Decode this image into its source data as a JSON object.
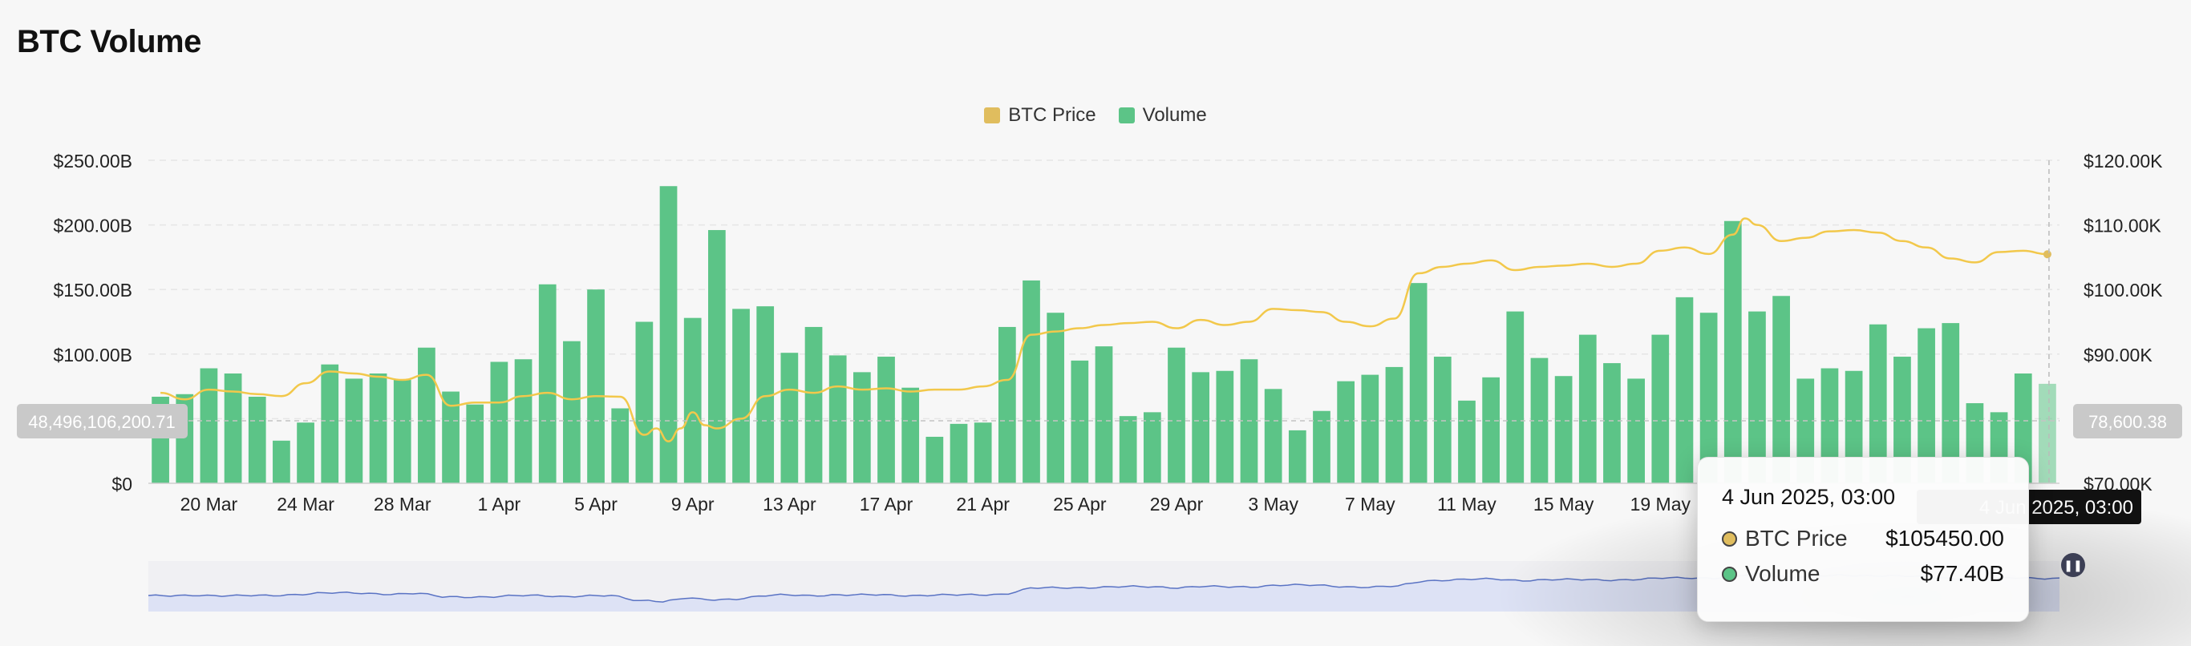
{
  "page": {
    "title": "BTC Volume"
  },
  "colors": {
    "volume": "#5cc487",
    "price": "#f2c84b",
    "navigator_fill": "#dde2f5",
    "navigator_line": "#5a73c4"
  },
  "legend": [
    {
      "label": "BTC Price",
      "color": "#e0bd5e"
    },
    {
      "label": "Volume",
      "color": "#5cc487"
    }
  ],
  "crosshair": {
    "left_value": "48,496,106,200.71",
    "right_value": "78,600.38",
    "x_label": "4 Jun 2025, 03:00"
  },
  "tooltip": {
    "title": "4 Jun 2025, 03:00",
    "rows": [
      {
        "label": "BTC Price",
        "value": "$105450.00",
        "color": "#e0bd5e"
      },
      {
        "label": "Volume",
        "value": "$77.40B",
        "color": "#5cc487"
      }
    ]
  },
  "chart_data": {
    "type": "bar",
    "title": "BTC Volume",
    "x_ticks": [
      "20 Mar",
      "24 Mar",
      "28 Mar",
      "1 Apr",
      "5 Apr",
      "9 Apr",
      "13 Apr",
      "17 Apr",
      "21 Apr",
      "25 Apr",
      "29 Apr",
      "3 May",
      "7 May",
      "11 May",
      "15 May",
      "19 May"
    ],
    "y_left": {
      "ticks": [
        "$0",
        "$50.00B",
        "$100.00B",
        "$150.00B",
        "$200.00B",
        "$250.00B"
      ],
      "range": [
        0,
        250
      ]
    },
    "y_right": {
      "ticks": [
        "$70.00K",
        "$80.00K",
        "$90.00K",
        "$100.00K",
        "$110.00K",
        "$120.00K"
      ],
      "range": [
        70,
        120
      ]
    },
    "grid": true,
    "legend_position": "top-center",
    "series": [
      {
        "name": "Volume",
        "type": "bar",
        "axis": "left",
        "unit": "B",
        "values": [
          67,
          69,
          89,
          85,
          67,
          33,
          47,
          92,
          81,
          85,
          80,
          105,
          71,
          61,
          94,
          96,
          154,
          110,
          150,
          58,
          125,
          230,
          128,
          196,
          135,
          137,
          101,
          121,
          99,
          86,
          98,
          74,
          36,
          46,
          47,
          121,
          157,
          132,
          95,
          106,
          52,
          55,
          105,
          86,
          87,
          96,
          73,
          41,
          56,
          79,
          84,
          90,
          155,
          98,
          64,
          82,
          133,
          97,
          83,
          115,
          93,
          81,
          115,
          144,
          132,
          203,
          133,
          145,
          81,
          89,
          87,
          123,
          98,
          120,
          124,
          62,
          55,
          85,
          77
        ]
      },
      {
        "name": "BTC Price",
        "type": "line",
        "axis": "right",
        "unit": "K",
        "points": [
          [
            0,
            84.0
          ],
          [
            1,
            83.0
          ],
          [
            2,
            84.5
          ],
          [
            3,
            84.2
          ],
          [
            4,
            83.8
          ],
          [
            5,
            83.5
          ],
          [
            6,
            85.5
          ],
          [
            7,
            87.3
          ],
          [
            8,
            87.0
          ],
          [
            9,
            86.5
          ],
          [
            10,
            86.0
          ],
          [
            11,
            86.8
          ],
          [
            12,
            82.0
          ],
          [
            13,
            82.5
          ],
          [
            14,
            82.5
          ],
          [
            15,
            83.5
          ],
          [
            16,
            84.0
          ],
          [
            17,
            83.0
          ],
          [
            18,
            83.5
          ],
          [
            19,
            83.4
          ],
          [
            20,
            77.5
          ],
          [
            20.5,
            78.5
          ],
          [
            21,
            76.5
          ],
          [
            21.5,
            78.5
          ],
          [
            22,
            81.0
          ],
          [
            22.5,
            79.0
          ],
          [
            23,
            78.5
          ],
          [
            24,
            80.0
          ],
          [
            25,
            83.5
          ],
          [
            26,
            84.5
          ],
          [
            27,
            84.0
          ],
          [
            28,
            85.0
          ],
          [
            29,
            84.5
          ],
          [
            30,
            84.7
          ],
          [
            31,
            84.2
          ],
          [
            32,
            84.5
          ],
          [
            33,
            84.5
          ],
          [
            34,
            85.0
          ],
          [
            35,
            86.0
          ],
          [
            36,
            93.0
          ],
          [
            37,
            93.5
          ],
          [
            38,
            94.0
          ],
          [
            39,
            94.5
          ],
          [
            40,
            94.8
          ],
          [
            41,
            95.0
          ],
          [
            42,
            94.0
          ],
          [
            43,
            95.3
          ],
          [
            44,
            94.5
          ],
          [
            45,
            95.0
          ],
          [
            46,
            97.0
          ],
          [
            47,
            96.8
          ],
          [
            48,
            96.5
          ],
          [
            49,
            95.0
          ],
          [
            50,
            94.3
          ],
          [
            51,
            95.5
          ],
          [
            52,
            102.5
          ],
          [
            53,
            103.5
          ],
          [
            54,
            104.0
          ],
          [
            55,
            104.5
          ],
          [
            56,
            103.0
          ],
          [
            57,
            103.5
          ],
          [
            58,
            103.7
          ],
          [
            59,
            104.0
          ],
          [
            60,
            103.5
          ],
          [
            61,
            104.0
          ],
          [
            62,
            106.0
          ],
          [
            63,
            106.5
          ],
          [
            64,
            105.5
          ],
          [
            65,
            108.5
          ],
          [
            65.5,
            111.0
          ],
          [
            66,
            110.0
          ],
          [
            67,
            107.5
          ],
          [
            68,
            108.0
          ],
          [
            69,
            109.0
          ],
          [
            70,
            109.2
          ],
          [
            71,
            108.8
          ],
          [
            72,
            107.5
          ],
          [
            73,
            106.5
          ],
          [
            74,
            104.8
          ],
          [
            75,
            104.2
          ],
          [
            76,
            105.8
          ],
          [
            77,
            106.0
          ],
          [
            78,
            105.45
          ]
        ]
      }
    ],
    "navigator": {
      "type": "area",
      "series": "BTC Price"
    }
  }
}
